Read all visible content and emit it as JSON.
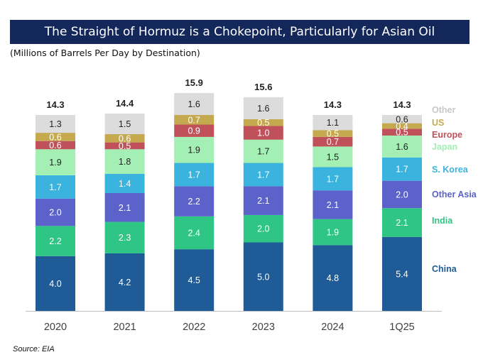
{
  "title": "The Straight of Hormuz is a Chokepoint, Particularly for Asian Oil",
  "subtitle": "(Millions of Barrels Per Day by Destination)",
  "source": "Source: EIA",
  "chart_data": {
    "type": "bar",
    "stacked": true,
    "categories": [
      "2020",
      "2021",
      "2022",
      "2023",
      "2024",
      "1Q25"
    ],
    "totals": [
      14.3,
      14.4,
      15.9,
      15.6,
      14.3,
      14.3
    ],
    "series": [
      {
        "name": "China",
        "color": "#1f5b96",
        "label_color": "#ffffff",
        "values": [
          4.0,
          4.2,
          4.5,
          5.0,
          4.8,
          5.4
        ]
      },
      {
        "name": "India",
        "color": "#2ec585",
        "label_color": "#ffffff",
        "values": [
          2.2,
          2.3,
          2.4,
          2.0,
          1.9,
          2.1
        ]
      },
      {
        "name": "Other Asia",
        "color": "#5b62c9",
        "label_color": "#ffffff",
        "values": [
          2.0,
          2.1,
          2.2,
          2.1,
          2.1,
          2.0
        ]
      },
      {
        "name": "S. Korea",
        "color": "#3ab3de",
        "label_color": "#ffffff",
        "values": [
          1.7,
          1.4,
          1.7,
          1.7,
          1.7,
          1.7
        ]
      },
      {
        "name": "Japan",
        "color": "#a3efb4",
        "label_color": "#222222",
        "values": [
          1.9,
          1.8,
          1.9,
          1.7,
          1.5,
          1.6
        ]
      },
      {
        "name": "Europe",
        "color": "#c0515b",
        "label_color": "#ffffff",
        "values": [
          0.6,
          0.5,
          0.9,
          1.0,
          0.7,
          0.5
        ]
      },
      {
        "name": "US",
        "color": "#c4a94e",
        "label_color": "#ffffff",
        "values": [
          0.6,
          0.6,
          0.7,
          0.5,
          0.5,
          0.4
        ]
      },
      {
        "name": "Other",
        "color": "#dcdcdc",
        "label_color": "#222222",
        "values": [
          1.3,
          1.5,
          1.6,
          1.6,
          1.1,
          0.6
        ]
      }
    ],
    "legend_placement": "right",
    "grid": false
  }
}
